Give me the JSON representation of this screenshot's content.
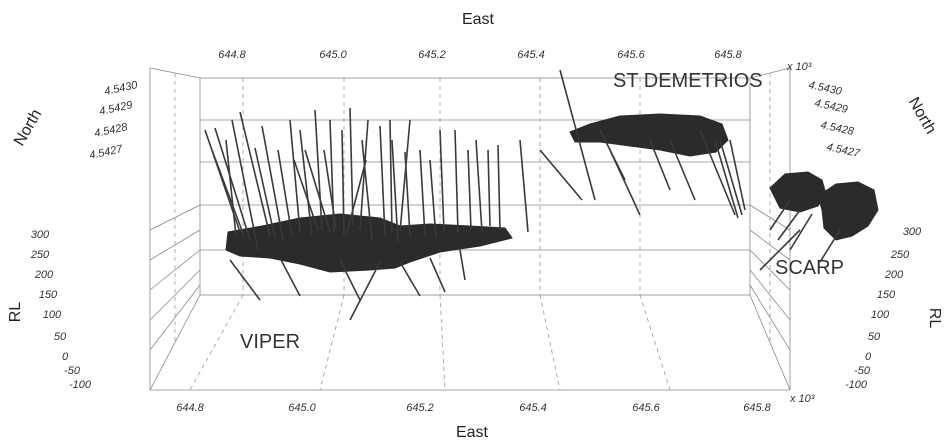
{
  "chart_data": {
    "type": "scatter",
    "x_top_label": "East",
    "x_bottom_label": "East",
    "y_label": "North",
    "z_label": "RL",
    "exponent_label_top": "x 10³",
    "exponent_label_bottom": "x 10³",
    "x_ticks_top": [
      "644.8",
      "645.0",
      "645.2",
      "645.4",
      "645.6",
      "645.8"
    ],
    "x_ticks_bottom": [
      "644.8",
      "645.0",
      "645.2",
      "645.4",
      "645.6",
      "645.8"
    ],
    "y_ticks_left": [
      "4.5430",
      "4.5429",
      "4.5428",
      "4.5427"
    ],
    "y_ticks_right": [
      "4.5430",
      "4.5429",
      "4.5428",
      "4.5427"
    ],
    "z_ticks_left": [
      "300",
      "250",
      "200",
      "150",
      "100",
      "50",
      "0",
      "-50",
      "-100"
    ],
    "z_ticks_right": [
      "300",
      "250",
      "200",
      "150",
      "100",
      "50",
      "0",
      "-50",
      "-100"
    ],
    "xlim": [
      644.8,
      645.8
    ],
    "zlim": [
      -100,
      300
    ],
    "labels": [
      {
        "text": "VIPER"
      },
      {
        "text": "ST DEMETRIOS"
      },
      {
        "text": "SCARP"
      }
    ],
    "series": [
      {
        "name": "VIPER"
      },
      {
        "name": "ST DEMETRIOS"
      },
      {
        "name": "SCARP"
      }
    ],
    "grid": true
  }
}
